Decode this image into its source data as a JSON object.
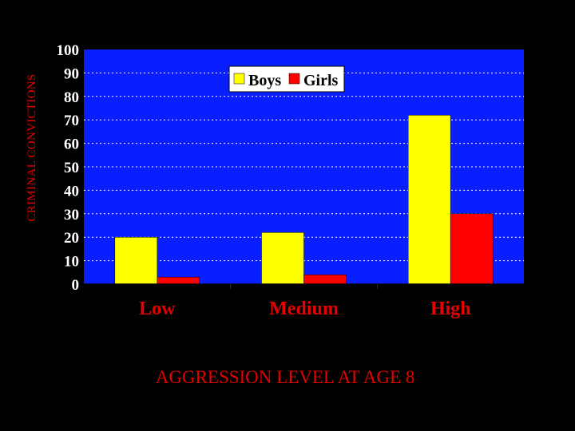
{
  "chart_data": {
    "type": "bar",
    "title": "",
    "xlabel": "AGGRESSION LEVEL AT AGE 8",
    "ylabel": "CRIMINAL CONVICTIONS",
    "categories": [
      "Low",
      "Medium",
      "High"
    ],
    "series": [
      {
        "name": "Boys",
        "values": [
          20,
          22,
          72
        ],
        "color": "#ffff00"
      },
      {
        "name": "Girls",
        "values": [
          3,
          4,
          30
        ],
        "color": "#ff0000"
      }
    ],
    "ylim": [
      0,
      100
    ],
    "yticks": [
      0,
      10,
      20,
      30,
      40,
      50,
      60,
      70,
      80,
      90,
      100
    ],
    "grid": true,
    "legend_position": "top",
    "plot_background": "#0a1fff",
    "page_background": "#000000"
  }
}
